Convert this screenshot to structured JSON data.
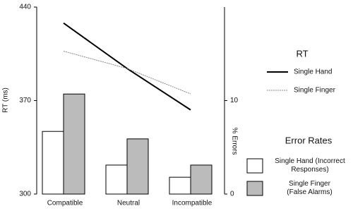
{
  "chart_data": {
    "type": "combo",
    "categories": [
      "Compatible",
      "Neutral",
      "Incompatible"
    ],
    "ylabel": "RT (ms)",
    "y2label": "% Errors",
    "ylim": [
      300,
      440
    ],
    "yticks": [
      300,
      370,
      440
    ],
    "y2lim": [
      0,
      20
    ],
    "y2ticks": [
      0,
      10
    ],
    "line_legend_title": "RT",
    "bar_legend_title": "Error Rates",
    "series": [
      {
        "name": "Single Hand",
        "type": "line",
        "color": "#000000",
        "values": [
          428,
          394,
          363
        ]
      },
      {
        "name": "Single Finger",
        "type": "line",
        "color": "#888888",
        "values": [
          407,
          394,
          375
        ]
      },
      {
        "name": "Single Hand (Incorrect Responses)",
        "type": "bar",
        "axis": "y2",
        "color": "#ffffff",
        "values": [
          6.7,
          3.1,
          1.8
        ]
      },
      {
        "name": "Single Finger (False Alarms)",
        "type": "bar",
        "axis": "y2",
        "color": "#bbbbbb",
        "values": [
          10.7,
          5.9,
          3.1
        ]
      }
    ]
  }
}
